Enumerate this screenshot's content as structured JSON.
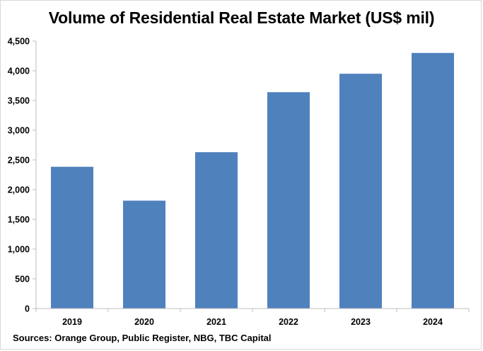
{
  "chart_data": {
    "type": "bar",
    "title": "Volume of Residential Real Estate Market (US$ mil)",
    "categories": [
      "2019",
      "2020",
      "2021",
      "2022",
      "2023",
      "2024"
    ],
    "values": [
      2385,
      1815,
      2630,
      3640,
      3950,
      4300
    ],
    "ylim": [
      0,
      4500
    ],
    "yticks": [
      0,
      500,
      1000,
      1500,
      2000,
      2500,
      3000,
      3500,
      4000,
      4500
    ],
    "ytick_labels": [
      "0",
      "500",
      "1,000",
      "1,500",
      "2,000",
      "2,500",
      "3,000",
      "3,500",
      "4,000",
      "4,500"
    ],
    "xlabel": "",
    "ylabel": "",
    "grid": false,
    "legend": "none",
    "colors": {
      "bar": "#4f81bd",
      "axis": "#bfbfbf"
    }
  },
  "source_note": "Sources:  Orange Group, Public Register, NBG, TBC Capital"
}
